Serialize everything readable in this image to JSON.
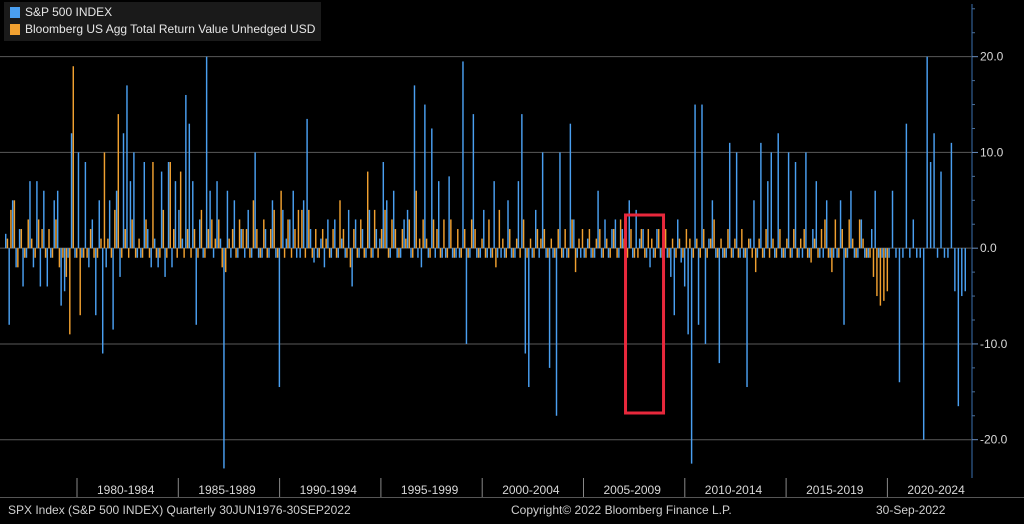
{
  "chart_data": {
    "type": "bar",
    "title": "",
    "series": [
      {
        "name": "S&P 500 INDEX",
        "color": "#4a9ff0",
        "values": [
          1.5,
          -8,
          5,
          -2,
          2,
          -4,
          -1,
          7,
          -2,
          7,
          -4,
          6,
          -4,
          -1,
          5,
          6,
          -6,
          -4.5,
          -1,
          12,
          -1,
          10,
          -1,
          9,
          -2,
          3,
          -7,
          5,
          -11,
          -2,
          5,
          -8.5,
          6,
          -3,
          12,
          17,
          7,
          10,
          -1,
          -1,
          9,
          2,
          -2,
          1,
          -2,
          8,
          -3,
          9,
          -2,
          7,
          4,
          1,
          16,
          13,
          7,
          -8,
          3,
          -1,
          20,
          6,
          -1,
          7,
          1,
          -23,
          6,
          -1,
          5,
          -1,
          2,
          -1,
          4,
          -1,
          10,
          -1,
          -1,
          2,
          -1,
          5,
          -1,
          -14.5,
          4,
          1,
          3,
          6,
          -1,
          -1,
          5,
          13.5,
          2,
          -1.5,
          -1,
          1,
          -2,
          3,
          -1,
          3,
          -1,
          1,
          -1,
          4,
          -4,
          3,
          -1,
          2,
          -1,
          4,
          -1,
          2,
          1,
          9,
          5,
          -1,
          6,
          -1,
          -1,
          3,
          4,
          -1,
          17,
          -1,
          -2,
          15,
          -1,
          12.5,
          -1,
          7,
          -1,
          -1,
          7.5,
          -1,
          -1,
          -1,
          19.5,
          -10,
          -1,
          14,
          -1,
          -1,
          4,
          -1,
          -1,
          7,
          -1,
          -1,
          -1,
          5,
          -1,
          -1,
          7,
          14,
          -11,
          -14.5,
          -1,
          4,
          -1,
          10,
          -1,
          -12.5,
          -1,
          -17.5,
          10,
          -1,
          -1,
          13,
          3,
          -1,
          -1,
          -1,
          1,
          -1,
          -1,
          6,
          -1,
          3,
          -1,
          2,
          3,
          -1,
          2,
          -1,
          5,
          -1,
          4,
          1,
          2,
          -1,
          -2,
          -1,
          2,
          -1,
          -2,
          -1,
          -3,
          -7,
          3,
          -1.5,
          -4,
          -9,
          -22.5,
          15,
          -8,
          15,
          -10,
          1,
          5,
          -1,
          -12,
          -1,
          -1,
          11,
          -1,
          10,
          -1,
          -1,
          -14.5,
          1,
          5,
          -1,
          11,
          -1,
          7,
          10,
          -1,
          12,
          -1,
          -1,
          10,
          -1,
          9,
          -1,
          -1,
          10,
          -1,
          2,
          7,
          -1,
          -1,
          5,
          -1,
          -1,
          -1,
          5,
          -8,
          -1,
          6,
          -1,
          -1,
          3,
          -1,
          -1,
          2,
          6,
          -1,
          -1,
          -1,
          -1,
          6,
          -1,
          -14,
          -1,
          13,
          -1,
          3,
          -1,
          -1,
          -20,
          20,
          9,
          12,
          -1,
          8,
          -1,
          -1,
          11,
          -4.5,
          -16.5,
          -5,
          -4.5
        ]
      },
      {
        "name": "Bloomberg US Agg Total Return Value Unhedged USD",
        "color": "#f0a030",
        "values": [
          1,
          4,
          5,
          -2,
          2,
          -1,
          3,
          1,
          -1,
          3,
          2,
          -1,
          2,
          -1,
          3,
          -2,
          -1,
          -3,
          -9,
          19,
          -1,
          -7,
          -1,
          -1,
          2,
          -1,
          -1,
          1,
          10,
          1,
          -1,
          4,
          14,
          -1,
          2,
          -1,
          3,
          -1,
          1,
          -1,
          3,
          -1,
          9,
          -1,
          -1,
          4,
          -1,
          9,
          2,
          -1,
          8,
          -1,
          2,
          -1,
          2,
          -1,
          4,
          -1,
          2,
          3,
          1,
          3,
          -2,
          -2.5,
          1,
          2,
          -1,
          3,
          2,
          2,
          -1,
          5,
          2,
          -1,
          3,
          -1,
          2,
          4,
          -1,
          6,
          -1,
          3,
          -1,
          2,
          4,
          4,
          -1,
          4,
          -1,
          2,
          -1,
          2,
          1,
          -1,
          2,
          -1,
          5,
          2,
          -1,
          -2,
          2,
          -1,
          3,
          -1,
          8,
          -1,
          4,
          -1,
          2,
          4,
          -1,
          3,
          2,
          -1,
          2,
          1,
          3,
          -1,
          6,
          1,
          3,
          1,
          -1,
          3,
          2,
          -1,
          3,
          -1,
          3,
          -1,
          2,
          -1,
          2,
          -1,
          3,
          2,
          -1,
          1,
          -1,
          3,
          -1,
          -2,
          4,
          1,
          -1,
          2,
          -1,
          1,
          -1,
          3,
          -1,
          1,
          -1,
          2,
          1,
          2,
          -1,
          1,
          -1,
          2,
          -1,
          2,
          -1,
          3,
          -2.5,
          1,
          2,
          -1,
          2,
          -1,
          1,
          2,
          -1,
          1,
          -1,
          2,
          -1,
          3,
          1,
          -1,
          2,
          -1,
          -1,
          2,
          -1,
          2,
          1,
          -1,
          2,
          -1,
          2,
          -1,
          1,
          -1,
          1,
          -1,
          2,
          1,
          -1,
          1,
          -1,
          2,
          -1,
          1,
          3,
          -1,
          1,
          -1,
          2,
          -1,
          1,
          -1,
          2,
          -1,
          1,
          -1,
          -2.5,
          1,
          -1,
          2,
          -1,
          1,
          -1,
          2,
          -1,
          1,
          -1,
          2,
          -1,
          1,
          2,
          -1,
          -1.5,
          1,
          -1,
          2,
          3,
          -1,
          -2.5,
          3,
          -1,
          2,
          -1,
          3,
          1,
          -1,
          3,
          1,
          -1,
          -1,
          -3,
          -5,
          -6,
          -5.5,
          -4.5
        ]
      }
    ],
    "y_ticks": [
      "20.0",
      "10.0",
      "0.0",
      "-10.0",
      "-20.0"
    ],
    "y_tick_values": [
      20,
      10,
      0,
      -10,
      -20
    ],
    "ylim": [
      -24,
      25.5
    ],
    "x_period_labels": [
      "1980-1984",
      "1985-1989",
      "1990-1994",
      "1995-1999",
      "2000-2004",
      "2005-2009",
      "2010-2014",
      "2015-2019",
      "2020-2024"
    ],
    "grid": true,
    "legend_position": "top-left",
    "highlight_box": {
      "from_index": 180,
      "to_index": 186,
      "color": "#e8283c"
    }
  },
  "footer": {
    "left": "SPX Index (S&P 500 INDEX)  Quarterly 30JUN1976-30SEP2022",
    "center": "Copyright© 2022 Bloomberg Finance L.P.",
    "right": "30-Sep-2022"
  }
}
